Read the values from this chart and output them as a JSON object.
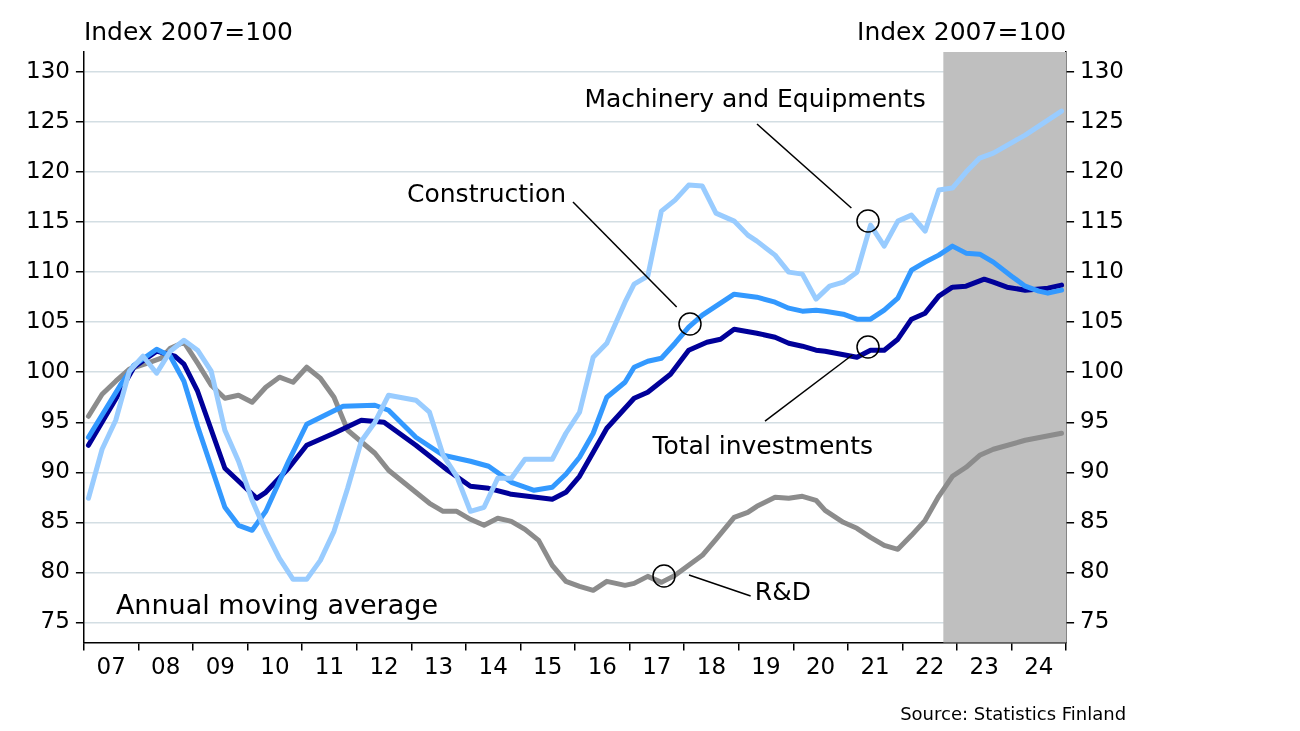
{
  "chart_data": {
    "type": "line",
    "ylabel": "Index 2007=100",
    "y2label": "Index 2007=100",
    "xlim": [
      "2007",
      "2025"
    ],
    "xticks": [
      {
        "value": "2007",
        "label": null
      },
      {
        "value": "2007-07",
        "label": "07"
      },
      {
        "value": "2008",
        "label": null
      },
      {
        "value": "2008-07",
        "label": "08"
      },
      {
        "value": "2009",
        "label": null
      },
      {
        "value": "2009-07",
        "label": "09"
      },
      {
        "value": "2010",
        "label": null
      },
      {
        "value": "2010-07",
        "label": "10"
      },
      {
        "value": "2011",
        "label": null
      },
      {
        "value": "2011-07",
        "label": "11"
      },
      {
        "value": "2012",
        "label": null
      },
      {
        "value": "2012-07",
        "label": "12"
      },
      {
        "value": "2013",
        "label": null
      },
      {
        "value": "2013-07",
        "label": "13"
      },
      {
        "value": "2014",
        "label": null
      },
      {
        "value": "2014-07",
        "label": "14"
      },
      {
        "value": "2015",
        "label": null
      },
      {
        "value": "2015-07",
        "label": "15"
      },
      {
        "value": "2016",
        "label": null
      },
      {
        "value": "2016-07",
        "label": "16"
      },
      {
        "value": "2017",
        "label": null
      },
      {
        "value": "2017-07",
        "label": "17"
      },
      {
        "value": "2018",
        "label": null
      },
      {
        "value": "2018-07",
        "label": "18"
      },
      {
        "value": "2019",
        "label": null
      },
      {
        "value": "2019-07",
        "label": "19"
      },
      {
        "value": "2020",
        "label": null
      },
      {
        "value": "2020-07",
        "label": "20"
      },
      {
        "value": "2021",
        "label": null
      },
      {
        "value": "2021-07",
        "label": "21"
      },
      {
        "value": "2022",
        "label": null
      },
      {
        "value": "2022-07",
        "label": "22"
      },
      {
        "value": "2023",
        "label": null
      },
      {
        "value": "2023-07",
        "label": "23"
      },
      {
        "value": "2024",
        "label": null
      },
      {
        "value": "2024-07",
        "label": "24"
      },
      {
        "value": "2025",
        "label": null
      }
    ],
    "ylim": [
      73,
      132
    ],
    "yticks": [
      75,
      80,
      85,
      90,
      95,
      100,
      105,
      110,
      115,
      120,
      125,
      130
    ],
    "y2lim": [
      73,
      132
    ],
    "y2ticks": [
      75,
      80,
      85,
      90,
      95,
      100,
      105,
      110,
      115,
      120,
      125,
      130
    ],
    "grid": "y",
    "legend": false,
    "marker": "none",
    "line_style": "solid",
    "bands": [
      {
        "axis": "x",
        "from": "2022-10",
        "to": "2025",
        "color": "#bfbfbf"
      }
    ],
    "annotations": [
      "Annual moving average",
      "Source: Statistics Finland"
    ],
    "series": [
      {
        "name": "Machinery and Equipments",
        "color": "#99ccff",
        "x": [
          "2007-02",
          "2007-05",
          "2007-08",
          "2007-11",
          "2008-02",
          "2008-05",
          "2008-08",
          "2008-11",
          "2009-02",
          "2009-05",
          "2009-08",
          "2009-11",
          "2010-02",
          "2010-05",
          "2010-08",
          "2010-11",
          "2011-02",
          "2011-05",
          "2011-08",
          "2011-11",
          "2012-02",
          "2012-05",
          "2012-08",
          "2013-02",
          "2013-05",
          "2013-08",
          "2013-11",
          "2014-02",
          "2014-05",
          "2014-08",
          "2014-11",
          "2015-02",
          "2015-08",
          "2015-11",
          "2016-02",
          "2016-05",
          "2016-08",
          "2016-12",
          "2017-02",
          "2017-05",
          "2017-08",
          "2017-11",
          "2018-02",
          "2018-05",
          "2018-08",
          "2018-12",
          "2019-03",
          "2019-05",
          "2019-09",
          "2019-12",
          "2020-03",
          "2020-06",
          "2020-09",
          "2020-12",
          "2021-03",
          "2021-06",
          "2021-09",
          "2021-12",
          "2022-03",
          "2022-06",
          "2022-09",
          "2022-12",
          "2023-03",
          "2023-06",
          "2023-09",
          "2024-04",
          "2024-12"
        ],
        "values": [
          87.4,
          92.3,
          95.2,
          100.1,
          101.6,
          99.9,
          102.1,
          103.2,
          102.2,
          100.1,
          94.2,
          91.1,
          87.2,
          84.1,
          81.4,
          79.3,
          79.3,
          81.2,
          84.1,
          88.4,
          93.1,
          95.0,
          97.7,
          97.2,
          96.0,
          91.7,
          89.6,
          86.1,
          86.5,
          89.4,
          89.4,
          91.3,
          91.3,
          93.9,
          96.0,
          101.5,
          102.9,
          107.0,
          108.8,
          109.6,
          116.1,
          117.2,
          118.7,
          118.6,
          115.9,
          115.1,
          113.7,
          113.1,
          111.7,
          110.0,
          109.8,
          107.3,
          108.6,
          109.0,
          110.0,
          114.7,
          112.6,
          115.1,
          115.7,
          114.1,
          118.2,
          118.4,
          120.0,
          121.4,
          121.9,
          123.7,
          126.1
        ]
      },
      {
        "name": "Construction",
        "color": "#3399ff",
        "x": [
          "2007-02",
          "2007-09",
          "2007-12",
          "2008-05",
          "2008-08",
          "2008-11",
          "2009-02",
          "2009-08",
          "2009-11",
          "2010-02",
          "2010-05",
          "2010-10",
          "2011-02",
          "2011-10",
          "2012-05",
          "2012-08",
          "2013-02",
          "2013-08",
          "2014-02",
          "2014-06",
          "2014-11",
          "2015-04",
          "2015-08",
          "2015-11",
          "2016-02",
          "2016-05",
          "2016-08",
          "2016-12",
          "2017-02",
          "2017-05",
          "2017-08",
          "2017-11",
          "2018-02",
          "2018-05",
          "2018-08",
          "2018-12",
          "2019-05",
          "2019-09",
          "2019-12",
          "2020-03",
          "2020-06",
          "2020-08",
          "2020-12",
          "2021-03",
          "2021-06",
          "2021-09",
          "2021-12",
          "2022-03",
          "2022-06",
          "2022-09",
          "2022-12",
          "2023-03",
          "2023-06",
          "2023-09",
          "2024-01",
          "2024-04",
          "2024-07",
          "2024-09",
          "2024-12"
        ],
        "values": [
          93.5,
          98.7,
          100.7,
          102.3,
          101.6,
          99.1,
          94.6,
          86.5,
          84.7,
          84.2,
          86.1,
          91.1,
          94.8,
          96.6,
          96.7,
          96.2,
          93.5,
          91.7,
          91.1,
          90.6,
          89.0,
          88.2,
          88.5,
          89.8,
          91.5,
          93.9,
          97.5,
          99.0,
          100.5,
          101.1,
          101.4,
          102.9,
          104.5,
          105.7,
          106.6,
          107.8,
          107.5,
          107.0,
          106.4,
          106.1,
          106.2,
          106.1,
          105.8,
          105.3,
          105.3,
          106.2,
          107.4,
          110.2,
          111.0,
          111.7,
          112.6,
          111.9,
          111.8,
          111.0,
          109.6,
          108.6,
          108.1,
          107.9,
          108.2
        ]
      },
      {
        "name": "Total investments",
        "color": "#000099",
        "x": [
          "2007-02",
          "2007-09",
          "2007-12",
          "2008-05",
          "2008-09",
          "2008-11",
          "2009-02",
          "2009-08",
          "2010-03",
          "2010-05",
          "2010-10",
          "2011-02",
          "2011-08",
          "2012-02",
          "2012-07",
          "2013-02",
          "2013-09",
          "2014-02",
          "2014-06",
          "2014-11",
          "2015-08",
          "2015-11",
          "2016-02",
          "2016-08",
          "2017-02",
          "2017-05",
          "2017-10",
          "2018-02",
          "2018-06",
          "2018-09",
          "2018-12",
          "2019-05",
          "2019-09",
          "2019-12",
          "2020-03",
          "2020-06",
          "2020-08",
          "2021-03",
          "2021-06",
          "2021-09",
          "2021-12",
          "2022-03",
          "2022-06",
          "2022-09",
          "2022-12",
          "2023-03",
          "2023-07",
          "2023-09",
          "2023-12",
          "2024-04",
          "2024-09",
          "2024-12"
        ],
        "values": [
          92.7,
          98.1,
          100.5,
          102.1,
          101.6,
          100.8,
          98.1,
          90.4,
          87.4,
          88.0,
          90.4,
          92.7,
          93.9,
          95.2,
          95.0,
          92.7,
          90.2,
          88.6,
          88.4,
          87.8,
          87.3,
          88.0,
          89.6,
          94.4,
          97.4,
          98.0,
          99.8,
          102.2,
          103.0,
          103.3,
          104.3,
          103.9,
          103.5,
          102.9,
          102.6,
          102.2,
          102.1,
          101.5,
          102.2,
          102.2,
          103.3,
          105.3,
          105.9,
          107.6,
          108.5,
          108.6,
          109.3,
          109.0,
          108.5,
          108.2,
          108.4,
          108.7
        ]
      },
      {
        "name": "R&D",
        "color": "#8c8c8c",
        "x": [
          "2007-02",
          "2007-05",
          "2007-08",
          "2007-11",
          "2008-03",
          "2008-06",
          "2008-08",
          "2008-11",
          "2009-02",
          "2009-05",
          "2009-08",
          "2009-11",
          "2010-02",
          "2010-05",
          "2010-08",
          "2010-11",
          "2011-02",
          "2011-05",
          "2011-08",
          "2011-11",
          "2012-05",
          "2012-08",
          "2013-02",
          "2013-05",
          "2013-08",
          "2013-11",
          "2014-02",
          "2014-05",
          "2014-08",
          "2014-11",
          "2015-02",
          "2015-05",
          "2015-08",
          "2015-11",
          "2016-02",
          "2016-05",
          "2016-08",
          "2016-12",
          "2017-02",
          "2017-05",
          "2017-08",
          "2017-11",
          "2018-02",
          "2018-05",
          "2018-08",
          "2018-12",
          "2019-03",
          "2019-05",
          "2019-09",
          "2019-12",
          "2020-03",
          "2020-06",
          "2020-08",
          "2020-12",
          "2021-03",
          "2021-06",
          "2021-09",
          "2021-12",
          "2022-03",
          "2022-06",
          "2022-09",
          "2022-12",
          "2023-03",
          "2023-06",
          "2023-09",
          "2024-04",
          "2024-12"
        ],
        "values": [
          95.6,
          97.8,
          99.1,
          100.3,
          100.9,
          101.4,
          102.4,
          103.0,
          100.9,
          98.7,
          97.4,
          97.7,
          97.0,
          98.5,
          99.5,
          99.0,
          100.5,
          99.4,
          97.5,
          94.2,
          91.9,
          90.2,
          88.0,
          86.9,
          86.1,
          86.1,
          85.3,
          84.7,
          85.4,
          85.1,
          84.3,
          83.2,
          80.7,
          79.1,
          78.6,
          78.2,
          79.1,
          78.7,
          78.9,
          79.6,
          79.0,
          79.7,
          80.7,
          81.7,
          83.3,
          85.5,
          86.0,
          86.6,
          87.5,
          87.4,
          87.6,
          87.2,
          86.2,
          85.0,
          84.4,
          83.5,
          82.7,
          82.3,
          83.7,
          85.2,
          87.6,
          89.6,
          90.5,
          91.7,
          92.3,
          93.2,
          93.9
        ]
      }
    ]
  }
}
